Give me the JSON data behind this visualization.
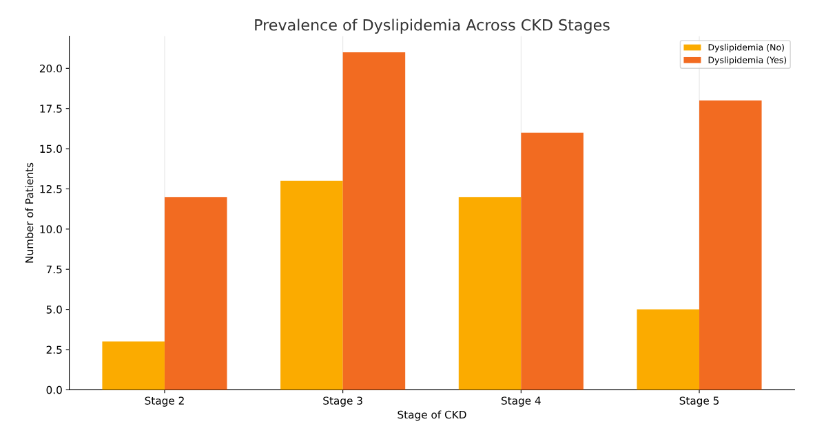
{
  "chart_data": {
    "type": "bar",
    "title": "Prevalence of Dyslipidemia Across CKD Stages",
    "xlabel": "Stage of CKD",
    "ylabel": "Number of Patients",
    "categories": [
      "Stage 2",
      "Stage 3",
      "Stage 4",
      "Stage 5"
    ],
    "series": [
      {
        "name": "Dyslipidemia (No)",
        "color": "#fbab00",
        "values": [
          3,
          13,
          12,
          5
        ]
      },
      {
        "name": "Dyslipidemia (Yes)",
        "color": "#f26b21",
        "values": [
          12,
          21,
          16,
          18
        ]
      }
    ],
    "ylim": [
      0,
      22
    ],
    "yticks": [
      {
        "value": 0,
        "label": "0.0"
      },
      {
        "value": 2.5,
        "label": "2.5"
      },
      {
        "value": 5,
        "label": "5.0"
      },
      {
        "value": 7.5,
        "label": "7.5"
      },
      {
        "value": 10,
        "label": "10.0"
      },
      {
        "value": 12.5,
        "label": "12.5"
      },
      {
        "value": 15,
        "label": "15.0"
      },
      {
        "value": 17.5,
        "label": "17.5"
      },
      {
        "value": 20,
        "label": "20.0"
      }
    ],
    "grid": "x",
    "legend": "upper right"
  }
}
